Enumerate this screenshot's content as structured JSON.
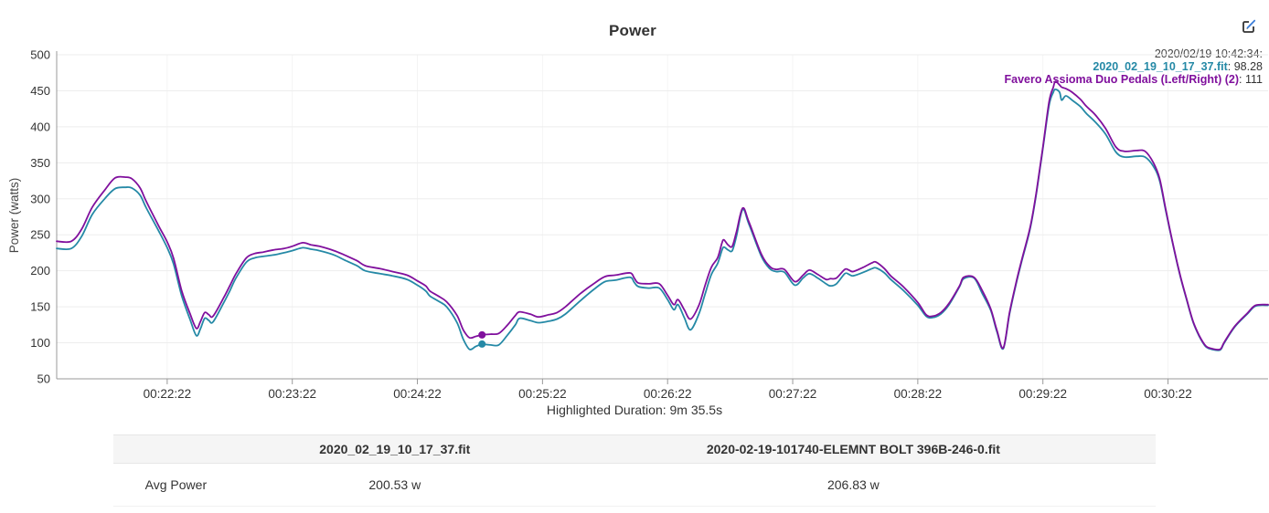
{
  "header": {
    "title": "Power",
    "edit_icon": "edit-icon"
  },
  "legend": {
    "timestamp": "2020/02/19 10:42:34:",
    "entries": [
      {
        "name": "2020_02_19_10_17_37.fit",
        "value": ": 98.28",
        "color": "#2589a6"
      },
      {
        "name": "Favero Assioma Duo Pedals (Left/Right) (2)",
        "value": ": 111",
        "color": "#80109d"
      }
    ]
  },
  "footer": {
    "highlighted_duration": "Highlighted Duration: 9m 35.5s"
  },
  "table": {
    "columns": [
      "",
      "2020_02_19_10_17_37.fit",
      "2020-02-19-101740-ELEMNT BOLT 396B-246-0.fit"
    ],
    "rows": [
      {
        "label": "Avg Power",
        "values": [
          "200.53 w",
          "206.83 w"
        ]
      }
    ]
  },
  "chart_data": {
    "type": "line",
    "title": "Power",
    "xlabel": "",
    "ylabel": "Power (watts)",
    "ylim": [
      50,
      500
    ],
    "yticks": [
      50,
      100,
      150,
      200,
      250,
      300,
      350,
      400,
      450,
      500
    ],
    "x_window_seconds": 581,
    "xticks": [
      {
        "t": 53,
        "label": "00:22:22"
      },
      {
        "t": 113,
        "label": "00:23:22"
      },
      {
        "t": 173,
        "label": "00:24:22"
      },
      {
        "t": 233,
        "label": "00:25:22"
      },
      {
        "t": 293,
        "label": "00:26:22"
      },
      {
        "t": 353,
        "label": "00:27:22"
      },
      {
        "t": 413,
        "label": "00:28:22"
      },
      {
        "t": 473,
        "label": "00:29:22"
      },
      {
        "t": 533,
        "label": "00:30:22"
      }
    ],
    "grid": true,
    "legend_position": "top-right",
    "hover": {
      "t": 204,
      "values": [
        98.28,
        111
      ]
    },
    "series": [
      {
        "name": "2020_02_19_10_17_37.fit",
        "color": "#2589a6",
        "avg": "200.53 w",
        "points": [
          [
            0,
            231
          ],
          [
            7,
            231
          ],
          [
            12,
            248
          ],
          [
            17,
            278
          ],
          [
            23,
            300
          ],
          [
            28,
            314
          ],
          [
            33,
            316
          ],
          [
            36,
            315
          ],
          [
            40,
            305
          ],
          [
            43,
            287
          ],
          [
            49,
            255
          ],
          [
            53,
            232
          ],
          [
            56,
            210
          ],
          [
            60,
            165
          ],
          [
            64,
            132
          ],
          [
            67,
            110
          ],
          [
            69,
            120
          ],
          [
            71,
            134
          ],
          [
            73,
            131
          ],
          [
            75,
            129
          ],
          [
            80,
            155
          ],
          [
            83,
            172
          ],
          [
            86,
            190
          ],
          [
            91,
            212
          ],
          [
            95,
            218
          ],
          [
            99,
            220
          ],
          [
            104,
            222
          ],
          [
            109,
            225
          ],
          [
            113,
            228
          ],
          [
            118,
            232
          ],
          [
            122,
            230
          ],
          [
            126,
            228
          ],
          [
            133,
            222
          ],
          [
            138,
            215
          ],
          [
            144,
            207
          ],
          [
            148,
            200
          ],
          [
            155,
            196
          ],
          [
            161,
            193
          ],
          [
            168,
            188
          ],
          [
            173,
            180
          ],
          [
            177,
            172
          ],
          [
            179,
            165
          ],
          [
            183,
            158
          ],
          [
            187,
            150
          ],
          [
            192,
            128
          ],
          [
            195,
            105
          ],
          [
            198,
            91
          ],
          [
            201,
            95
          ],
          [
            204,
            98
          ],
          [
            208,
            97
          ],
          [
            212,
            97
          ],
          [
            216,
            110
          ],
          [
            220,
            125
          ],
          [
            222,
            134
          ],
          [
            227,
            131
          ],
          [
            231,
            128
          ],
          [
            236,
            130
          ],
          [
            240,
            133
          ],
          [
            244,
            140
          ],
          [
            251,
            158
          ],
          [
            258,
            175
          ],
          [
            263,
            185
          ],
          [
            268,
            187
          ],
          [
            275,
            191
          ],
          [
            277,
            184
          ],
          [
            279,
            178
          ],
          [
            284,
            176
          ],
          [
            289,
            176
          ],
          [
            293,
            160
          ],
          [
            296,
            146
          ],
          [
            298,
            153
          ],
          [
            301,
            135
          ],
          [
            304,
            118
          ],
          [
            308,
            140
          ],
          [
            311,
            168
          ],
          [
            314,
            195
          ],
          [
            317,
            210
          ],
          [
            319,
            228
          ],
          [
            320,
            233
          ],
          [
            322,
            229
          ],
          [
            324,
            228
          ],
          [
            326,
            248
          ],
          [
            329,
            285
          ],
          [
            332,
            265
          ],
          [
            338,
            220
          ],
          [
            342,
            203
          ],
          [
            345,
            199
          ],
          [
            349,
            198
          ],
          [
            354,
            180
          ],
          [
            358,
            190
          ],
          [
            361,
            196
          ],
          [
            365,
            190
          ],
          [
            369,
            182
          ],
          [
            371,
            179
          ],
          [
            374,
            182
          ],
          [
            378,
            196
          ],
          [
            380,
            195
          ],
          [
            382,
            193
          ],
          [
            387,
            198
          ],
          [
            391,
            203
          ],
          [
            393,
            204
          ],
          [
            397,
            197
          ],
          [
            400,
            188
          ],
          [
            406,
            173
          ],
          [
            413,
            152
          ],
          [
            417,
            137
          ],
          [
            420,
            135
          ],
          [
            424,
            140
          ],
          [
            428,
            153
          ],
          [
            433,
            178
          ],
          [
            435,
            189
          ],
          [
            440,
            190
          ],
          [
            444,
            168
          ],
          [
            448,
            145
          ],
          [
            451,
            115
          ],
          [
            454,
            92
          ],
          [
            457,
            140
          ],
          [
            460,
            180
          ],
          [
            463,
            215
          ],
          [
            467,
            260
          ],
          [
            470,
            310
          ],
          [
            473,
            370
          ],
          [
            476,
            430
          ],
          [
            478,
            448
          ],
          [
            479,
            452
          ],
          [
            481,
            448
          ],
          [
            482,
            437
          ],
          [
            484,
            443
          ],
          [
            487,
            437
          ],
          [
            491,
            428
          ],
          [
            494,
            418
          ],
          [
            498,
            407
          ],
          [
            503,
            390
          ],
          [
            508,
            365
          ],
          [
            512,
            358
          ],
          [
            518,
            359
          ],
          [
            522,
            358
          ],
          [
            526,
            345
          ],
          [
            529,
            325
          ],
          [
            532,
            282
          ],
          [
            536,
            228
          ],
          [
            539,
            191
          ],
          [
            542,
            159
          ],
          [
            545,
            129
          ],
          [
            548,
            109
          ],
          [
            551,
            95
          ],
          [
            554,
            91
          ],
          [
            558,
            90
          ],
          [
            560,
            100
          ],
          [
            565,
            122
          ],
          [
            571,
            140
          ],
          [
            575,
            151
          ],
          [
            581,
            152
          ]
        ]
      },
      {
        "name": "Favero Assioma Duo Pedals (Left/Right) (2)",
        "color": "#80109d",
        "avg": "206.83 w",
        "points": [
          [
            0,
            241
          ],
          [
            7,
            241
          ],
          [
            12,
            258
          ],
          [
            17,
            288
          ],
          [
            23,
            312
          ],
          [
            28,
            329
          ],
          [
            33,
            330
          ],
          [
            36,
            328
          ],
          [
            40,
            315
          ],
          [
            43,
            296
          ],
          [
            49,
            262
          ],
          [
            53,
            240
          ],
          [
            56,
            218
          ],
          [
            60,
            172
          ],
          [
            64,
            140
          ],
          [
            67,
            120
          ],
          [
            69,
            130
          ],
          [
            71,
            142
          ],
          [
            73,
            139
          ],
          [
            75,
            137
          ],
          [
            80,
            162
          ],
          [
            83,
            179
          ],
          [
            86,
            196
          ],
          [
            91,
            218
          ],
          [
            95,
            224
          ],
          [
            99,
            226
          ],
          [
            104,
            229
          ],
          [
            109,
            231
          ],
          [
            113,
            234
          ],
          [
            118,
            239
          ],
          [
            122,
            236
          ],
          [
            126,
            234
          ],
          [
            133,
            228
          ],
          [
            138,
            222
          ],
          [
            144,
            214
          ],
          [
            148,
            207
          ],
          [
            155,
            203
          ],
          [
            161,
            199
          ],
          [
            168,
            194
          ],
          [
            173,
            186
          ],
          [
            177,
            179
          ],
          [
            179,
            172
          ],
          [
            183,
            165
          ],
          [
            187,
            157
          ],
          [
            192,
            138
          ],
          [
            195,
            118
          ],
          [
            198,
            107
          ],
          [
            201,
            109
          ],
          [
            204,
            111
          ],
          [
            208,
            112
          ],
          [
            212,
            113
          ],
          [
            216,
            124
          ],
          [
            220,
            138
          ],
          [
            222,
            143
          ],
          [
            227,
            140
          ],
          [
            231,
            136
          ],
          [
            236,
            139
          ],
          [
            240,
            142
          ],
          [
            244,
            150
          ],
          [
            251,
            168
          ],
          [
            258,
            183
          ],
          [
            263,
            192
          ],
          [
            268,
            194
          ],
          [
            275,
            197
          ],
          [
            277,
            190
          ],
          [
            279,
            183
          ],
          [
            284,
            182
          ],
          [
            289,
            182
          ],
          [
            293,
            166
          ],
          [
            296,
            153
          ],
          [
            298,
            160
          ],
          [
            301,
            146
          ],
          [
            304,
            133
          ],
          [
            308,
            152
          ],
          [
            311,
            180
          ],
          [
            314,
            205
          ],
          [
            317,
            218
          ],
          [
            319,
            238
          ],
          [
            320,
            243
          ],
          [
            322,
            236
          ],
          [
            324,
            234
          ],
          [
            326,
            254
          ],
          [
            329,
            287
          ],
          [
            332,
            268
          ],
          [
            338,
            223
          ],
          [
            342,
            206
          ],
          [
            345,
            202
          ],
          [
            349,
            202
          ],
          [
            354,
            185
          ],
          [
            358,
            194
          ],
          [
            361,
            201
          ],
          [
            365,
            195
          ],
          [
            369,
            188
          ],
          [
            371,
            189
          ],
          [
            374,
            190
          ],
          [
            378,
            202
          ],
          [
            380,
            201
          ],
          [
            382,
            199
          ],
          [
            387,
            205
          ],
          [
            391,
            211
          ],
          [
            393,
            212
          ],
          [
            397,
            203
          ],
          [
            400,
            193
          ],
          [
            406,
            178
          ],
          [
            413,
            156
          ],
          [
            417,
            139
          ],
          [
            420,
            137
          ],
          [
            424,
            142
          ],
          [
            428,
            155
          ],
          [
            433,
            179
          ],
          [
            435,
            191
          ],
          [
            440,
            191
          ],
          [
            444,
            172
          ],
          [
            448,
            147
          ],
          [
            451,
            117
          ],
          [
            454,
            93
          ],
          [
            457,
            142
          ],
          [
            460,
            182
          ],
          [
            463,
            217
          ],
          [
            467,
            262
          ],
          [
            470,
            312
          ],
          [
            473,
            372
          ],
          [
            476,
            435
          ],
          [
            478,
            455
          ],
          [
            479,
            463
          ],
          [
            481,
            458
          ],
          [
            482,
            455
          ],
          [
            484,
            453
          ],
          [
            487,
            448
          ],
          [
            491,
            438
          ],
          [
            494,
            428
          ],
          [
            498,
            417
          ],
          [
            503,
            398
          ],
          [
            508,
            372
          ],
          [
            512,
            366
          ],
          [
            518,
            367
          ],
          [
            522,
            366
          ],
          [
            526,
            350
          ],
          [
            529,
            328
          ],
          [
            532,
            284
          ],
          [
            536,
            229
          ],
          [
            539,
            192
          ],
          [
            542,
            160
          ],
          [
            545,
            130
          ],
          [
            548,
            110
          ],
          [
            551,
            96
          ],
          [
            554,
            92
          ],
          [
            558,
            91
          ],
          [
            560,
            101
          ],
          [
            565,
            123
          ],
          [
            571,
            141
          ],
          [
            575,
            152
          ],
          [
            581,
            153
          ]
        ]
      }
    ]
  }
}
